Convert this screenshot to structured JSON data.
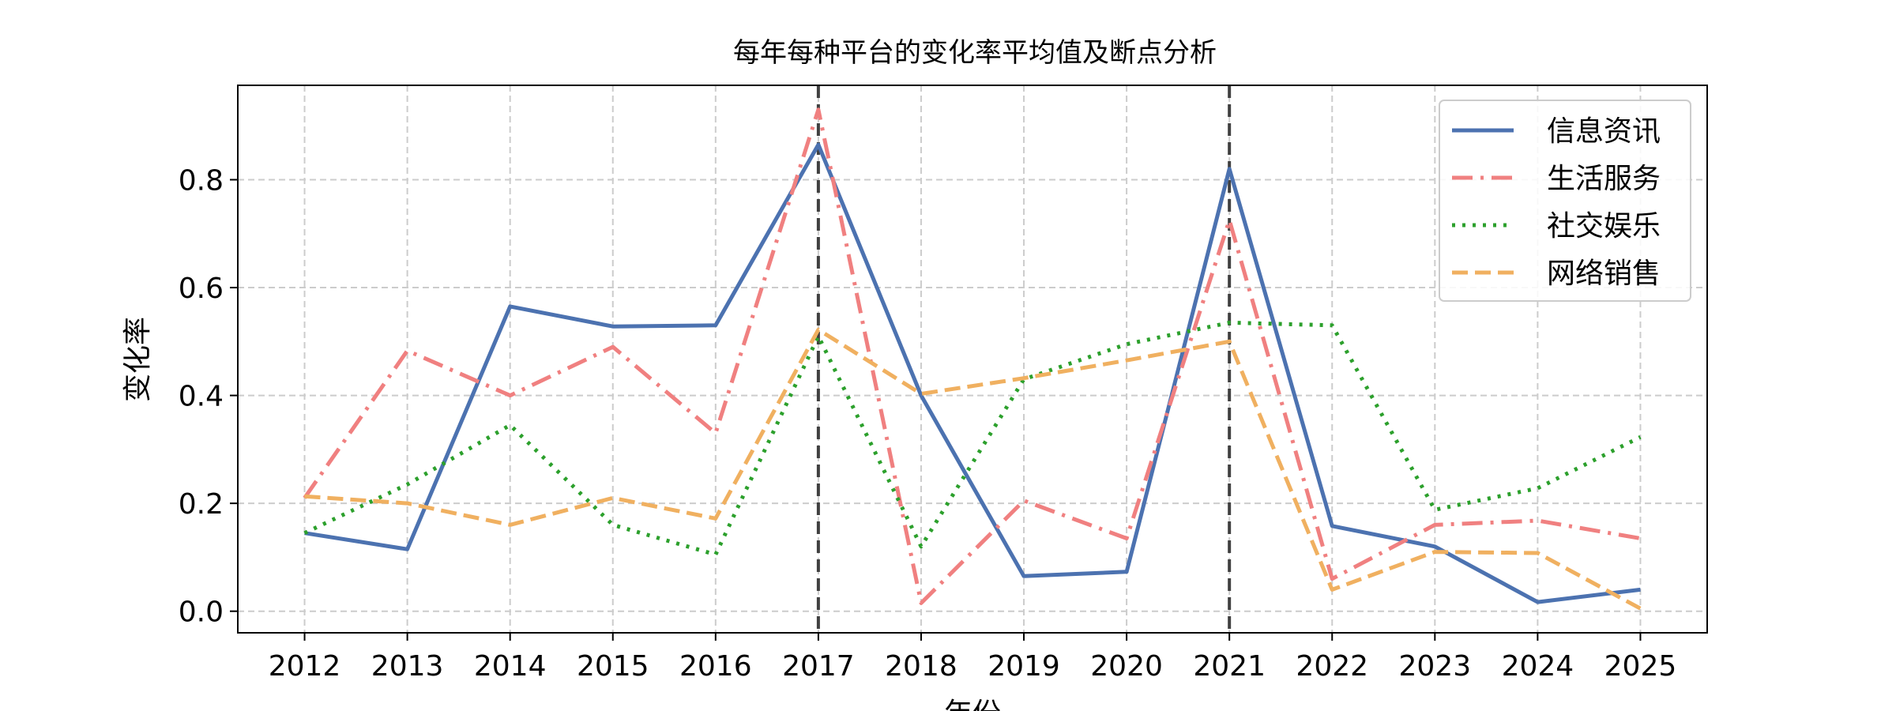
{
  "chart_data": {
    "type": "line",
    "title": "每年每种平台的变化率平均值及断点分析",
    "xlabel": "年份",
    "ylabel": "变化率",
    "x": [
      "2012",
      "2013",
      "2014",
      "2015",
      "2016",
      "2017",
      "2018",
      "2019",
      "2020",
      "2021",
      "2022",
      "2023",
      "2024",
      "2025"
    ],
    "xlim": [
      2011.35,
      2025.65
    ],
    "ylim": [
      -0.04,
      0.975
    ],
    "yticks": [
      "0.0",
      "0.2",
      "0.4",
      "0.6",
      "0.8"
    ],
    "grid": true,
    "legend_position": "top-right",
    "breakpoints": [
      "2017",
      "2021"
    ],
    "series": [
      {
        "name": "信息资讯",
        "color": "#4c72b0",
        "style": "solid",
        "values": [
          0.145,
          0.115,
          0.565,
          0.528,
          0.53,
          0.865,
          0.4,
          0.065,
          0.073,
          0.82,
          0.158,
          0.12,
          0.017,
          0.04
        ]
      },
      {
        "name": "生活服务",
        "color": "#f08080",
        "style": "dashdot",
        "values": [
          0.21,
          0.483,
          0.4,
          0.49,
          0.33,
          0.93,
          0.015,
          0.205,
          0.135,
          0.725,
          0.06,
          0.16,
          0.168,
          0.135
        ]
      },
      {
        "name": "社交娱乐",
        "color": "#2ca02c",
        "style": "dotted",
        "values": [
          0.145,
          0.235,
          0.345,
          0.16,
          0.105,
          0.51,
          0.12,
          0.43,
          0.495,
          0.535,
          0.53,
          0.188,
          0.228,
          0.323
        ]
      },
      {
        "name": "网络销售",
        "color": "#f0b060",
        "style": "dashed",
        "values": [
          0.213,
          0.2,
          0.16,
          0.21,
          0.172,
          0.522,
          0.403,
          0.432,
          0.465,
          0.5,
          0.04,
          0.11,
          0.108,
          0.005
        ]
      }
    ]
  }
}
